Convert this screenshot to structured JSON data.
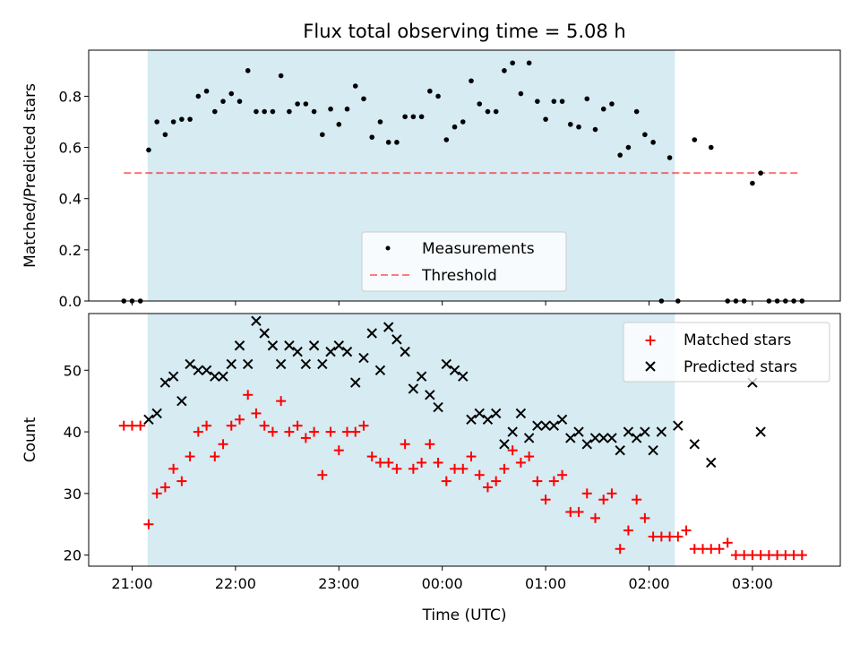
{
  "title": "Flux total observing time = 5.08 h",
  "colors": {
    "observing_band": "#add8e6",
    "measurements": "#000000",
    "threshold": "#ff0000",
    "matched": "#ff0000",
    "predicted": "#000000"
  },
  "x_axis": {
    "label": "Time (UTC)",
    "unit": "hours from 21:00 UTC",
    "range": [
      -0.42,
      6.85
    ],
    "ticks": [
      {
        "value": 0,
        "label": "21:00"
      },
      {
        "value": 1,
        "label": "22:00"
      },
      {
        "value": 2,
        "label": "23:00"
      },
      {
        "value": 3,
        "label": "00:00"
      },
      {
        "value": 4,
        "label": "01:00"
      },
      {
        "value": 5,
        "label": "02:00"
      },
      {
        "value": 6,
        "label": "03:00"
      }
    ]
  },
  "chart_data": [
    {
      "type": "scatter",
      "ylabel": "Matched/Predicted stars",
      "ylim": [
        0,
        0.98
      ],
      "yticks": [
        {
          "value": 0.0,
          "label": "0.0"
        },
        {
          "value": 0.2,
          "label": "0.2"
        },
        {
          "value": 0.4,
          "label": "0.4"
        },
        {
          "value": 0.6,
          "label": "0.6"
        },
        {
          "value": 0.8,
          "label": "0.8"
        }
      ],
      "observing_window": [
        0.15,
        5.25
      ],
      "threshold": {
        "name": "Threshold",
        "value": 0.5,
        "x_range": [
          -0.08,
          6.45
        ]
      },
      "legend": {
        "location": "lower center",
        "entries": [
          "Measurements",
          "Threshold"
        ]
      },
      "series": [
        {
          "name": "Measurements",
          "x": [
            -0.08,
            0.0,
            0.08,
            0.16,
            0.24,
            0.32,
            0.4,
            0.48,
            0.56,
            0.64,
            0.72,
            0.8,
            0.88,
            0.96,
            1.04,
            1.12,
            1.2,
            1.28,
            1.36,
            1.44,
            1.52,
            1.6,
            1.68,
            1.76,
            1.84,
            1.92,
            2.0,
            2.08,
            2.16,
            2.24,
            2.32,
            2.4,
            2.48,
            2.56,
            2.64,
            2.72,
            2.8,
            2.88,
            2.96,
            3.04,
            3.12,
            3.2,
            3.28,
            3.36,
            3.44,
            3.52,
            3.6,
            3.68,
            3.76,
            3.84,
            3.92,
            4.0,
            4.08,
            4.16,
            4.24,
            4.32,
            4.4,
            4.48,
            4.56,
            4.64,
            4.72,
            4.8,
            4.88,
            4.96,
            5.04,
            5.12,
            5.2,
            5.28,
            5.44,
            5.6,
            5.76,
            5.84,
            5.92,
            6.0,
            6.08,
            6.16,
            6.24,
            6.32,
            6.4,
            6.48
          ],
          "values": [
            0.0,
            0.0,
            0.0,
            0.59,
            0.7,
            0.65,
            0.7,
            0.71,
            0.71,
            0.8,
            0.82,
            0.74,
            0.78,
            0.81,
            0.78,
            0.9,
            0.74,
            0.74,
            0.74,
            0.88,
            0.74,
            0.77,
            0.77,
            0.74,
            0.65,
            0.75,
            0.69,
            0.75,
            0.84,
            0.79,
            0.64,
            0.7,
            0.62,
            0.62,
            0.72,
            0.72,
            0.72,
            0.82,
            0.8,
            0.63,
            0.68,
            0.7,
            0.86,
            0.77,
            0.74,
            0.74,
            0.9,
            0.93,
            0.81,
            0.93,
            0.78,
            0.71,
            0.78,
            0.78,
            0.69,
            0.68,
            0.79,
            0.67,
            0.75,
            0.77,
            0.57,
            0.6,
            0.74,
            0.65,
            0.62,
            0.0,
            0.56,
            0.0,
            0.63,
            0.6,
            0.0,
            0.0,
            0.0,
            0.46,
            0.5,
            0.0,
            0.0,
            0.0,
            0.0,
            0.0
          ]
        }
      ]
    },
    {
      "type": "scatter",
      "ylabel": "Count",
      "ylim": [
        18.2,
        59.2
      ],
      "yticks": [
        {
          "value": 20,
          "label": "20"
        },
        {
          "value": 30,
          "label": "30"
        },
        {
          "value": 40,
          "label": "40"
        },
        {
          "value": 50,
          "label": "50"
        }
      ],
      "observing_window": [
        0.15,
        5.25
      ],
      "legend": {
        "location": "upper right",
        "entries": [
          "Matched stars",
          "Predicted stars"
        ]
      },
      "series": [
        {
          "name": "Matched stars",
          "marker": "plus",
          "x": [
            -0.08,
            0.0,
            0.08,
            0.16,
            0.24,
            0.32,
            0.4,
            0.48,
            0.56,
            0.64,
            0.72,
            0.8,
            0.88,
            0.96,
            1.04,
            1.12,
            1.2,
            1.28,
            1.36,
            1.44,
            1.52,
            1.6,
            1.68,
            1.76,
            1.84,
            1.92,
            2.0,
            2.08,
            2.16,
            2.24,
            2.32,
            2.4,
            2.48,
            2.56,
            2.64,
            2.72,
            2.8,
            2.88,
            2.96,
            3.04,
            3.12,
            3.2,
            3.28,
            3.36,
            3.44,
            3.52,
            3.6,
            3.68,
            3.76,
            3.84,
            3.92,
            4.0,
            4.08,
            4.16,
            4.24,
            4.32,
            4.4,
            4.48,
            4.56,
            4.64,
            4.72,
            4.8,
            4.88,
            4.96,
            5.04,
            5.12,
            5.2,
            5.28,
            5.36,
            5.44,
            5.52,
            5.6,
            5.68,
            5.76,
            5.84,
            5.92,
            6.0,
            6.08,
            6.16,
            6.24,
            6.32,
            6.4,
            6.48
          ],
          "values": [
            41,
            41,
            41,
            25,
            30,
            31,
            34,
            32,
            36,
            40,
            41,
            36,
            38,
            41,
            42,
            46,
            43,
            41,
            40,
            45,
            40,
            41,
            39,
            40,
            33,
            40,
            37,
            40,
            40,
            41,
            36,
            35,
            35,
            34,
            38,
            34,
            35,
            38,
            35,
            32,
            34,
            34,
            36,
            33,
            31,
            32,
            34,
            37,
            35,
            36,
            32,
            29,
            32,
            33,
            27,
            27,
            30,
            26,
            29,
            30,
            21,
            24,
            29,
            26,
            23,
            23,
            23,
            23,
            24,
            21,
            21,
            21,
            21,
            22,
            20,
            20,
            20,
            20,
            20,
            20,
            20,
            20,
            20
          ]
        },
        {
          "name": "Predicted stars",
          "marker": "x",
          "x": [
            0.16,
            0.24,
            0.32,
            0.4,
            0.48,
            0.56,
            0.64,
            0.72,
            0.8,
            0.88,
            0.96,
            1.04,
            1.12,
            1.2,
            1.28,
            1.36,
            1.44,
            1.52,
            1.6,
            1.68,
            1.76,
            1.84,
            1.92,
            2.0,
            2.08,
            2.16,
            2.24,
            2.32,
            2.4,
            2.48,
            2.56,
            2.64,
            2.72,
            2.8,
            2.88,
            2.96,
            3.04,
            3.12,
            3.2,
            3.28,
            3.36,
            3.44,
            3.52,
            3.6,
            3.68,
            3.76,
            3.84,
            3.92,
            4.0,
            4.08,
            4.16,
            4.24,
            4.32,
            4.4,
            4.48,
            4.56,
            4.64,
            4.72,
            4.8,
            4.88,
            4.96,
            5.04,
            5.12,
            5.28,
            5.44,
            5.6,
            6.0,
            6.08
          ],
          "values": [
            42,
            43,
            48,
            49,
            45,
            51,
            50,
            50,
            49,
            49,
            51,
            54,
            51,
            58,
            56,
            54,
            51,
            54,
            53,
            51,
            54,
            51,
            53,
            54,
            53,
            48,
            52,
            56,
            50,
            57,
            55,
            53,
            47,
            49,
            46,
            44,
            51,
            50,
            49,
            42,
            43,
            42,
            43,
            38,
            40,
            43,
            39,
            41,
            41,
            41,
            42,
            39,
            40,
            38,
            39,
            39,
            39,
            37,
            40,
            39,
            40,
            37,
            40,
            41,
            38,
            35,
            48,
            40
          ]
        }
      ]
    }
  ]
}
